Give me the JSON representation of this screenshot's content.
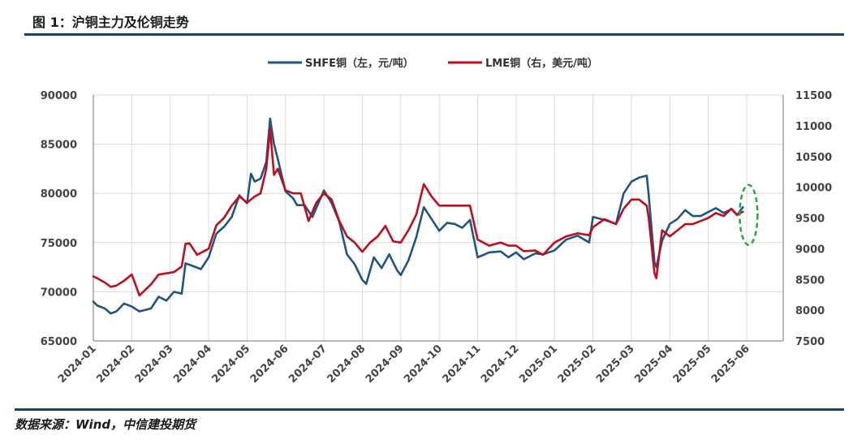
{
  "figure_title": "图 1：沪铜主力及伦铜走势",
  "source": "数据来源：Wind，中信建投期货",
  "colors": {
    "shfe": "#1f5585",
    "lme": "#c00d1e",
    "grid": "#d9d9d9",
    "axis": "#8c8c8c",
    "annotation": "#22a845",
    "rule": "#17426b"
  },
  "chart_data": {
    "type": "line",
    "dates": [
      "2024-01",
      "2024-02",
      "2024-03",
      "2024-04",
      "2024-05",
      "2024-06",
      "2024-07",
      "2024-08",
      "2024-09",
      "2024-10",
      "2024-11",
      "2024-12",
      "2025-01",
      "2025-02",
      "2025-03",
      "2025-04",
      "2025-05",
      "2025-06"
    ],
    "y_left": {
      "ticks": [
        "90000",
        "85000",
        "80000",
        "75000",
        "70000",
        "65000"
      ],
      "range": [
        65000,
        90000
      ]
    },
    "y_right": {
      "ticks": [
        "11500",
        "11000",
        "10500",
        "10000",
        "9500",
        "9000",
        "8500",
        "8000",
        "7500"
      ],
      "range": [
        7500,
        11500
      ]
    },
    "series": [
      {
        "name": "SHFE铜（左，元/吨）",
        "axis": "left",
        "points": [
          [
            0,
            69000
          ],
          [
            0.1,
            68600
          ],
          [
            0.3,
            68300
          ],
          [
            0.45,
            67800
          ],
          [
            0.6,
            68000
          ],
          [
            0.8,
            68800
          ],
          [
            1.0,
            68500
          ],
          [
            1.2,
            68000
          ],
          [
            1.5,
            68300
          ],
          [
            1.7,
            69500
          ],
          [
            1.9,
            69100
          ],
          [
            2.1,
            70000
          ],
          [
            2.3,
            69800
          ],
          [
            2.4,
            72900
          ],
          [
            2.6,
            72600
          ],
          [
            2.8,
            72300
          ],
          [
            3.0,
            73500
          ],
          [
            3.2,
            75900
          ],
          [
            3.4,
            76600
          ],
          [
            3.6,
            77600
          ],
          [
            3.8,
            79800
          ],
          [
            4.0,
            79000
          ],
          [
            4.1,
            82000
          ],
          [
            4.2,
            81200
          ],
          [
            4.35,
            81500
          ],
          [
            4.5,
            83200
          ],
          [
            4.6,
            87600
          ],
          [
            4.7,
            85000
          ],
          [
            4.8,
            83500
          ],
          [
            5.0,
            80200
          ],
          [
            5.2,
            79500
          ],
          [
            5.3,
            78800
          ],
          [
            5.5,
            78800
          ],
          [
            5.7,
            77600
          ],
          [
            6.0,
            80300
          ],
          [
            6.2,
            79000
          ],
          [
            6.4,
            77100
          ],
          [
            6.6,
            73800
          ],
          [
            6.8,
            72800
          ],
          [
            7.0,
            71200
          ],
          [
            7.1,
            70800
          ],
          [
            7.3,
            73500
          ],
          [
            7.5,
            72400
          ],
          [
            7.7,
            73800
          ],
          [
            7.9,
            72200
          ],
          [
            8.0,
            71700
          ],
          [
            8.2,
            73200
          ],
          [
            8.4,
            75500
          ],
          [
            8.6,
            78600
          ],
          [
            8.8,
            77400
          ],
          [
            9.0,
            76200
          ],
          [
            9.2,
            77000
          ],
          [
            9.4,
            76900
          ],
          [
            9.6,
            76500
          ],
          [
            9.8,
            77300
          ],
          [
            10.0,
            73500
          ],
          [
            10.3,
            74000
          ],
          [
            10.6,
            74100
          ],
          [
            10.8,
            73500
          ],
          [
            11.0,
            74000
          ],
          [
            11.2,
            73300
          ],
          [
            11.5,
            73900
          ],
          [
            11.7,
            73800
          ],
          [
            12.0,
            74200
          ],
          [
            12.3,
            75300
          ],
          [
            12.6,
            75700
          ],
          [
            12.9,
            75000
          ],
          [
            13.0,
            77600
          ],
          [
            13.3,
            77300
          ],
          [
            13.6,
            76900
          ],
          [
            13.8,
            80000
          ],
          [
            14.0,
            81200
          ],
          [
            14.2,
            81600
          ],
          [
            14.4,
            81800
          ],
          [
            14.45,
            79800
          ],
          [
            14.6,
            73000
          ],
          [
            14.65,
            72500
          ],
          [
            14.8,
            75200
          ],
          [
            15.0,
            76900
          ],
          [
            15.2,
            77400
          ],
          [
            15.4,
            78300
          ],
          [
            15.6,
            77700
          ],
          [
            15.8,
            77700
          ],
          [
            16.0,
            78100
          ],
          [
            16.2,
            78500
          ],
          [
            16.4,
            78000
          ],
          [
            16.6,
            78400
          ],
          [
            16.75,
            77800
          ],
          [
            16.9,
            78600
          ]
        ]
      },
      {
        "name": "LME铜（右，美元/吨）",
        "axis": "right",
        "points": [
          [
            0,
            8550
          ],
          [
            0.1,
            8520
          ],
          [
            0.3,
            8450
          ],
          [
            0.45,
            8380
          ],
          [
            0.6,
            8400
          ],
          [
            0.8,
            8480
          ],
          [
            1.0,
            8580
          ],
          [
            1.2,
            8240
          ],
          [
            1.5,
            8420
          ],
          [
            1.7,
            8580
          ],
          [
            1.9,
            8600
          ],
          [
            2.1,
            8620
          ],
          [
            2.3,
            8710
          ],
          [
            2.4,
            9080
          ],
          [
            2.5,
            9090
          ],
          [
            2.7,
            8900
          ],
          [
            3.0,
            9000
          ],
          [
            3.2,
            9380
          ],
          [
            3.4,
            9500
          ],
          [
            3.6,
            9700
          ],
          [
            3.8,
            9850
          ],
          [
            4.0,
            9750
          ],
          [
            4.2,
            9850
          ],
          [
            4.35,
            9900
          ],
          [
            4.5,
            10300
          ],
          [
            4.6,
            10950
          ],
          [
            4.7,
            10200
          ],
          [
            4.8,
            10300
          ],
          [
            5.0,
            9950
          ],
          [
            5.2,
            9900
          ],
          [
            5.4,
            9900
          ],
          [
            5.6,
            9450
          ],
          [
            5.8,
            9750
          ],
          [
            6.0,
            9900
          ],
          [
            6.2,
            9800
          ],
          [
            6.4,
            9450
          ],
          [
            6.6,
            9200
          ],
          [
            6.8,
            9100
          ],
          [
            7.0,
            8950
          ],
          [
            7.2,
            9100
          ],
          [
            7.4,
            9200
          ],
          [
            7.6,
            9370
          ],
          [
            7.8,
            9120
          ],
          [
            8.0,
            9100
          ],
          [
            8.2,
            9300
          ],
          [
            8.4,
            9550
          ],
          [
            8.6,
            10050
          ],
          [
            8.8,
            9850
          ],
          [
            9.0,
            9700
          ],
          [
            9.2,
            9700
          ],
          [
            9.4,
            9700
          ],
          [
            9.6,
            9700
          ],
          [
            9.8,
            9700
          ],
          [
            10.0,
            9150
          ],
          [
            10.3,
            9050
          ],
          [
            10.6,
            9100
          ],
          [
            10.8,
            9050
          ],
          [
            11.0,
            9050
          ],
          [
            11.2,
            8960
          ],
          [
            11.5,
            8970
          ],
          [
            11.7,
            8900
          ],
          [
            12.0,
            9100
          ],
          [
            12.3,
            9200
          ],
          [
            12.6,
            9250
          ],
          [
            12.9,
            9220
          ],
          [
            13.0,
            9350
          ],
          [
            13.3,
            9480
          ],
          [
            13.6,
            9400
          ],
          [
            13.8,
            9650
          ],
          [
            14.0,
            9800
          ],
          [
            14.2,
            9800
          ],
          [
            14.4,
            9700
          ],
          [
            14.45,
            9500
          ],
          [
            14.6,
            8600
          ],
          [
            14.65,
            8520
          ],
          [
            14.8,
            9300
          ],
          [
            15.0,
            9200
          ],
          [
            15.2,
            9300
          ],
          [
            15.4,
            9400
          ],
          [
            15.6,
            9400
          ],
          [
            15.8,
            9450
          ],
          [
            16.0,
            9500
          ],
          [
            16.2,
            9580
          ],
          [
            16.4,
            9530
          ],
          [
            16.6,
            9650
          ],
          [
            16.75,
            9550
          ],
          [
            16.9,
            9600
          ]
        ]
      }
    ],
    "annotation": {
      "type": "dashed-ellipse",
      "near_x": 17.05,
      "near_value_right": 9550
    }
  }
}
